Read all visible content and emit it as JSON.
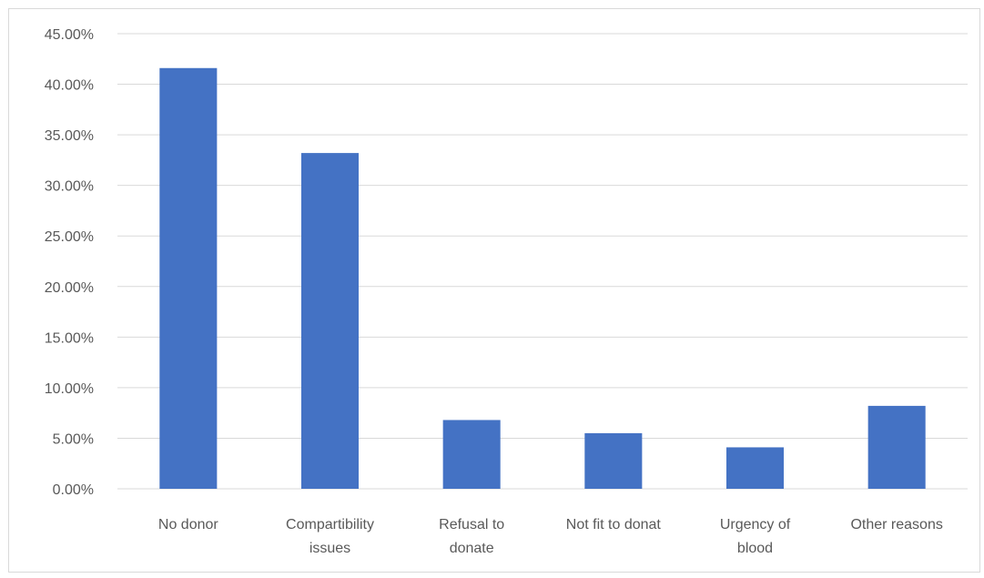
{
  "chart_data": {
    "type": "bar",
    "title": "",
    "xlabel": "",
    "ylabel": "",
    "categories": [
      [
        "No donor"
      ],
      [
        "Compartibility",
        "issues"
      ],
      [
        "Refusal to",
        "donate"
      ],
      [
        "Not fit to donat"
      ],
      [
        "Urgency of",
        "blood"
      ],
      [
        "Other reasons"
      ]
    ],
    "values": [
      0.416,
      0.332,
      0.068,
      0.055,
      0.041,
      0.082
    ],
    "ylim": [
      0,
      0.45
    ],
    "yticks": [
      0,
      0.05,
      0.1,
      0.15,
      0.2,
      0.25,
      0.3,
      0.35,
      0.4,
      0.45
    ],
    "ytick_labels": [
      "0.00%",
      "5.00%",
      "10.00%",
      "15.00%",
      "20.00%",
      "25.00%",
      "30.00%",
      "35.00%",
      "40.00%",
      "45.00%"
    ],
    "grid": true,
    "legend": "none",
    "colors": {
      "bar": "#4472c4",
      "grid": "#d9d9d9",
      "text": "#595959"
    }
  }
}
